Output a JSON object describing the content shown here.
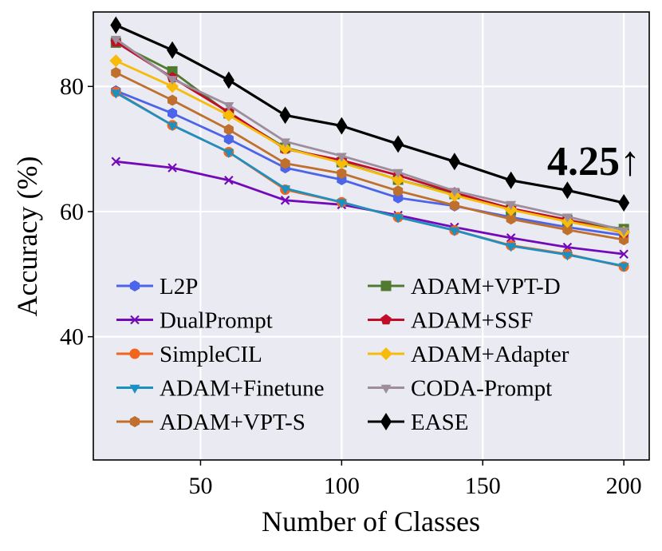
{
  "chart_data": {
    "type": "line",
    "title": "",
    "xlabel": "Number of Classes",
    "ylabel": "Accuracy (%)",
    "xlim": [
      12,
      209
    ],
    "ylim": [
      20.3,
      91.9
    ],
    "xticks": [
      50,
      100,
      150,
      200
    ],
    "yticks": [
      40,
      60,
      80
    ],
    "grid": true,
    "legend_position": "lower-left, two columns",
    "annotation": "4.25↑",
    "x": [
      20,
      40,
      60,
      80,
      100,
      120,
      140,
      160,
      180,
      200
    ],
    "series": [
      {
        "name": "L2P",
        "color": "#4b64ea",
        "marker": "hexagon",
        "values": [
          79.3,
          75.7,
          71.6,
          67.0,
          65.1,
          62.2,
          60.9,
          59.1,
          57.5,
          56.2
        ]
      },
      {
        "name": "DualPrompt",
        "color": "#7309b9",
        "marker": "x",
        "values": [
          68.0,
          67.0,
          65.0,
          61.8,
          61.1,
          59.4,
          57.5,
          55.8,
          54.3,
          53.2
        ]
      },
      {
        "name": "SimpleCIL",
        "color": "#f26419",
        "marker": "circle",
        "values": [
          79.1,
          73.8,
          69.5,
          63.5,
          61.5,
          59.1,
          57.0,
          54.6,
          53.2,
          51.2
        ]
      },
      {
        "name": "ADAM+Finetune",
        "color": "#1d90c2",
        "marker": "triangle-down",
        "values": [
          79.0,
          73.8,
          69.5,
          63.7,
          61.5,
          59.1,
          57.0,
          54.5,
          53.1,
          51.3
        ]
      },
      {
        "name": "ADAM+VPT-S",
        "color": "#c0702d",
        "marker": "hexagon",
        "values": [
          82.2,
          77.8,
          73.1,
          67.7,
          66.1,
          63.3,
          61.0,
          58.8,
          57.1,
          55.5
        ]
      },
      {
        "name": "ADAM+VPT-D",
        "color": "#4f7a30",
        "marker": "square",
        "values": [
          87.0,
          82.4,
          75.7,
          70.2,
          67.9,
          65.1,
          62.8,
          60.3,
          58.6,
          57.2
        ]
      },
      {
        "name": "ADAM+SSF",
        "color": "#c00e28",
        "marker": "pentagon",
        "values": [
          87.1,
          81.4,
          75.9,
          70.0,
          68.2,
          65.8,
          63.0,
          60.5,
          58.7,
          56.6
        ]
      },
      {
        "name": "ADAM+Adapter",
        "color": "#f7bb09",
        "marker": "diamond",
        "values": [
          84.1,
          80.0,
          75.4,
          70.1,
          67.8,
          65.1,
          62.6,
          60.3,
          58.4,
          56.7
        ]
      },
      {
        "name": "CODA-Prompt",
        "color": "#9e8e9d",
        "marker": "triangle-down",
        "values": [
          87.6,
          81.2,
          77.0,
          71.2,
          68.9,
          66.3,
          63.3,
          61.2,
          59.2,
          57.0
        ]
      },
      {
        "name": "EASE",
        "color": "#000000",
        "marker": "thin-diamond",
        "values": [
          89.8,
          85.8,
          81.0,
          75.4,
          73.7,
          70.8,
          68.0,
          65.0,
          63.4,
          61.4
        ]
      }
    ]
  }
}
